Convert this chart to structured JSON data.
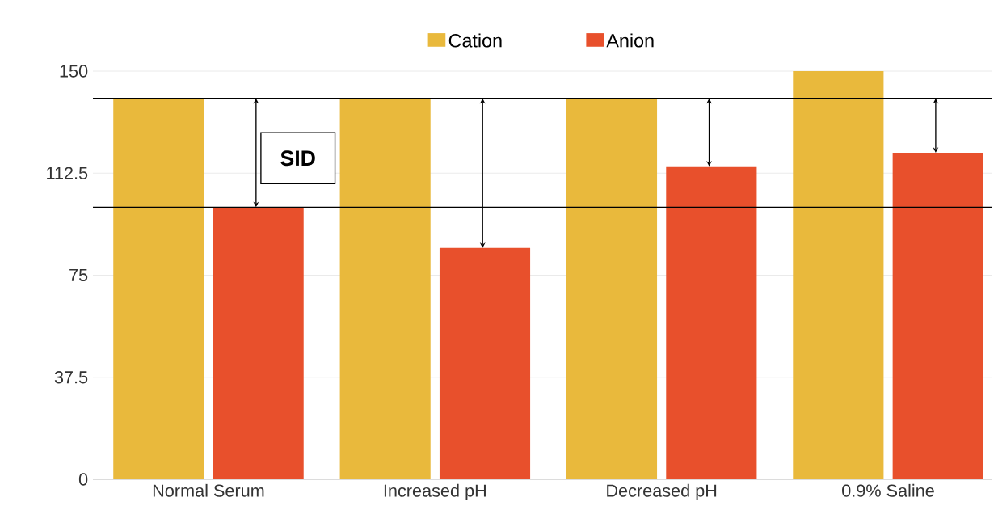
{
  "chart_data": {
    "type": "bar",
    "categories": [
      "Normal Serum",
      "Increased pH",
      "Decreased pH",
      "0.9% Saline"
    ],
    "series": [
      {
        "name": "Cation",
        "color": "#e9b93c",
        "values": [
          140,
          140,
          140,
          150
        ]
      },
      {
        "name": "Anion",
        "color": "#e8502c",
        "values": [
          100,
          85,
          115,
          120
        ]
      }
    ],
    "ylim": [
      0,
      150
    ],
    "yticks": [
      0,
      37.5,
      75,
      112.5,
      150
    ],
    "grid": "y",
    "legend": "top",
    "ref_lines": [
      {
        "axis": "y",
        "value": 140,
        "color": "#000000"
      },
      {
        "axis": "y",
        "value": 100,
        "color": "#000000"
      }
    ],
    "annotations": [
      "SID"
    ]
  }
}
